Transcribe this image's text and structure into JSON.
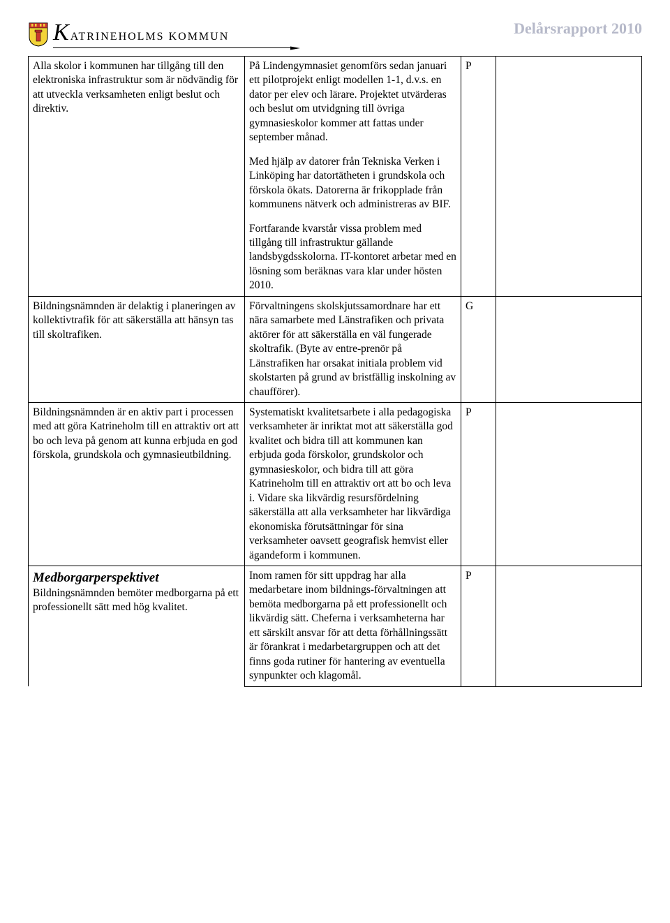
{
  "header": {
    "brand_k": "K",
    "brand_rest": "ATRINEHOLMS KOMMUN",
    "title": "Delårsrapport 2010",
    "title_color": "#b6b9c9"
  },
  "table": {
    "rows": [
      {
        "col1": {
          "paragraphs": [
            "Alla skolor i kommunen har tillgång till den elektroniska infrastruktur som är nödvändig för att utveckla verksamheten enligt beslut och direktiv."
          ]
        },
        "col2": {
          "paragraphs": [
            "På Lindengymnasiet genomförs sedan januari ett pilotprojekt enligt modellen 1-1, d.v.s. en dator per elev och lärare. Projektet utvärderas och beslut om utvidgning till övriga gymnasieskolor kommer att fattas under september månad.",
            "Med hjälp av datorer från Tekniska Verken i Linköping har datortätheten i grundskola och förskola ökats. Datorerna är frikopplade från kommunens nätverk och administreras av BIF.",
            "Fortfarande kvarstår vissa problem med tillgång till infrastruktur gällande landsbygdsskolorna. IT-kontoret arbetar med en lösning som beräknas vara klar under hösten 2010."
          ]
        },
        "col3": "P",
        "col4": ""
      },
      {
        "col1": {
          "paragraphs": [
            "Bildningsnämnden är delaktig i planeringen av kollektivtrafik för att säkerställa att hänsyn tas till skoltrafiken."
          ]
        },
        "col2": {
          "paragraphs": [
            "Förvaltningens skolskjutssamordnare har ett nära samarbete med Länstrafiken och privata aktörer för att säkerställa en väl fungerade skoltrafik. (Byte av entre-prenör på Länstrafiken har orsakat initiala problem vid skolstarten på grund av bristfällig inskolning av chaufförer)."
          ]
        },
        "col3": "G",
        "col4": ""
      },
      {
        "col1": {
          "paragraphs": [
            "Bildningsnämnden är en aktiv part i processen med att göra Katrineholm till en attraktiv ort att bo och leva på genom att kunna erbjuda en god förskola, grundskola och gymnasieutbildning."
          ]
        },
        "col2": {
          "paragraphs": [
            "Systematiskt kvalitetsarbete i alla pedagogiska verksamheter är inriktat mot att säkerställa god kvalitet och bidra till att kommunen kan erbjuda goda förskolor, grundskolor och gymnasieskolor, och bidra till att göra Katrineholm till en attraktiv ort att bo och leva i. Vidare ska likvärdig resursfördelning säkerställa att alla verksamheter har likvärdiga ekonomiska förutsättningar för sina verksamheter oavsett geografisk hemvist eller ägandeform i kommunen."
          ]
        },
        "col3": "P",
        "col4": ""
      }
    ],
    "section_heading": "Medborgarperspektivet",
    "section_row": {
      "col1": {
        "paragraphs": [
          "Bildningsnämnden bemöter medborgarna på ett professionellt sätt med hög kvalitet."
        ]
      },
      "col2": {
        "paragraphs": [
          "Inom ramen för sitt uppdrag  har alla medarbetare inom bildnings-förvaltningen  att bemöta medborgarna på ett professionellt och likvärdig sätt. Cheferna i verksamheterna har ett särskilt ansvar för att detta förhållningssätt är förankrat i medarbetargruppen och att det finns goda rutiner för hantering  av eventuella synpunkter och klagomål."
        ]
      },
      "col3": "P",
      "col4": ""
    }
  },
  "colors": {
    "text": "#000000",
    "background": "#ffffff",
    "border": "#000000",
    "shield_yellow": "#f3d338",
    "shield_red": "#c9362e"
  }
}
